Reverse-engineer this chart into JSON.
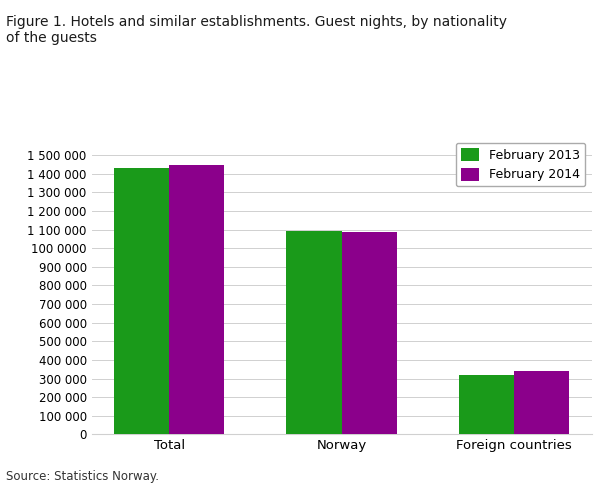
{
  "title": "Figure 1. Hotels and similar establishments. Guest nights, by nationality\nof the guests",
  "categories": [
    "Total",
    "Norway",
    "Foreign countries"
  ],
  "feb2013": [
    1430000,
    1095000,
    320000
  ],
  "feb2014": [
    1450000,
    1085000,
    340000
  ],
  "color_2013": "#1a9a1a",
  "color_2014": "#8b008b",
  "legend_labels": [
    "February 2013",
    "February 2014"
  ],
  "ylim": [
    0,
    1600000
  ],
  "yticks": [
    0,
    100000,
    200000,
    300000,
    400000,
    500000,
    600000,
    700000,
    800000,
    900000,
    1000000,
    1100000,
    1200000,
    1300000,
    1400000,
    1500000
  ],
  "ytick_labels": [
    "0",
    "100 000",
    "200 000",
    "300 000",
    "400 000",
    "500 000",
    "600 000",
    "700 000",
    "800 000",
    "900 000",
    "100 0000",
    "1 100 000",
    "1 200 000",
    "1 300 000",
    "1 400 000",
    "1 500 000"
  ],
  "ylabel": "",
  "xlabel": "",
  "source_text": "Source: Statistics Norway.",
  "background_color": "#ffffff",
  "grid_color": "#d0d0d0",
  "bar_width": 0.32
}
